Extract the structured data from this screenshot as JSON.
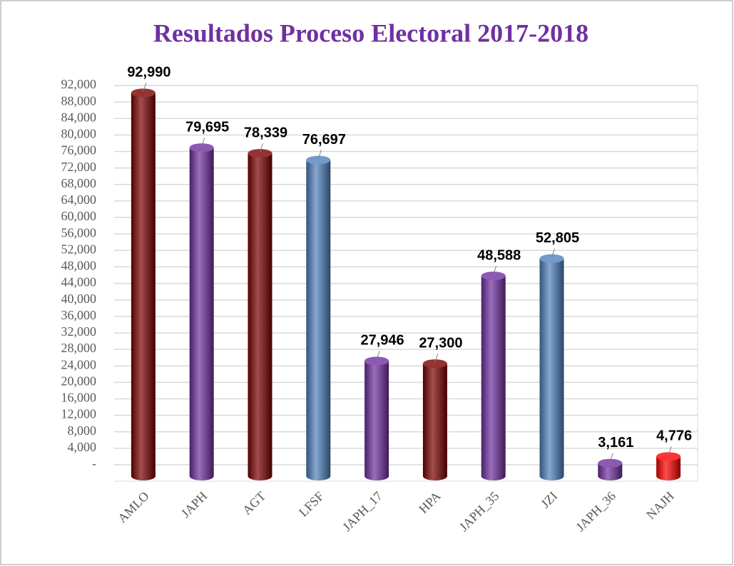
{
  "chart_data": {
    "type": "bar",
    "title": "Resultados Proceso Electoral 2017-2018",
    "categories": [
      "AMLO",
      "JAPH",
      "AGT",
      "LFSF",
      "JAPH_17",
      "HPA",
      "JAPH_35",
      "JZI",
      "JAPH_36",
      "NAJH"
    ],
    "values": [
      92990,
      79695,
      78339,
      76697,
      27946,
      27300,
      48588,
      52805,
      3161,
      4776
    ],
    "value_labels": [
      "92,990",
      "79,695",
      "78,339",
      "76,697",
      "27,946",
      "27,300",
      "48,588",
      "52,805",
      "3,161",
      "4,776"
    ],
    "colors": [
      "#7b0000",
      "#7030a0",
      "#7b0000",
      "#4f81bd",
      "#7030a0",
      "#7b0000",
      "#7030a0",
      "#4f81bd",
      "#7030a0",
      "#ff0000"
    ],
    "ylim": [
      0,
      92000
    ],
    "yticks": [
      {
        "value": 0,
        "label": "-"
      },
      {
        "value": 4000,
        "label": "4,000"
      },
      {
        "value": 8000,
        "label": "8,000"
      },
      {
        "value": 12000,
        "label": "12,000"
      },
      {
        "value": 16000,
        "label": "16,000"
      },
      {
        "value": 20000,
        "label": "20,000"
      },
      {
        "value": 24000,
        "label": "24,000"
      },
      {
        "value": 28000,
        "label": "28,000"
      },
      {
        "value": 32000,
        "label": "32,000"
      },
      {
        "value": 36000,
        "label": "36,000"
      },
      {
        "value": 40000,
        "label": "40,000"
      },
      {
        "value": 44000,
        "label": "44,000"
      },
      {
        "value": 48000,
        "label": "48,000"
      },
      {
        "value": 52000,
        "label": "52,000"
      },
      {
        "value": 56000,
        "label": "56,000"
      },
      {
        "value": 60000,
        "label": "60,000"
      },
      {
        "value": 64000,
        "label": "64,000"
      },
      {
        "value": 68000,
        "label": "68,000"
      },
      {
        "value": 72000,
        "label": "72,000"
      },
      {
        "value": 76000,
        "label": "76,000"
      },
      {
        "value": 80000,
        "label": "80,000"
      },
      {
        "value": 84000,
        "label": "84,000"
      },
      {
        "value": 88000,
        "label": "88,000"
      },
      {
        "value": 92000,
        "label": "92,000"
      }
    ],
    "grid": true
  }
}
